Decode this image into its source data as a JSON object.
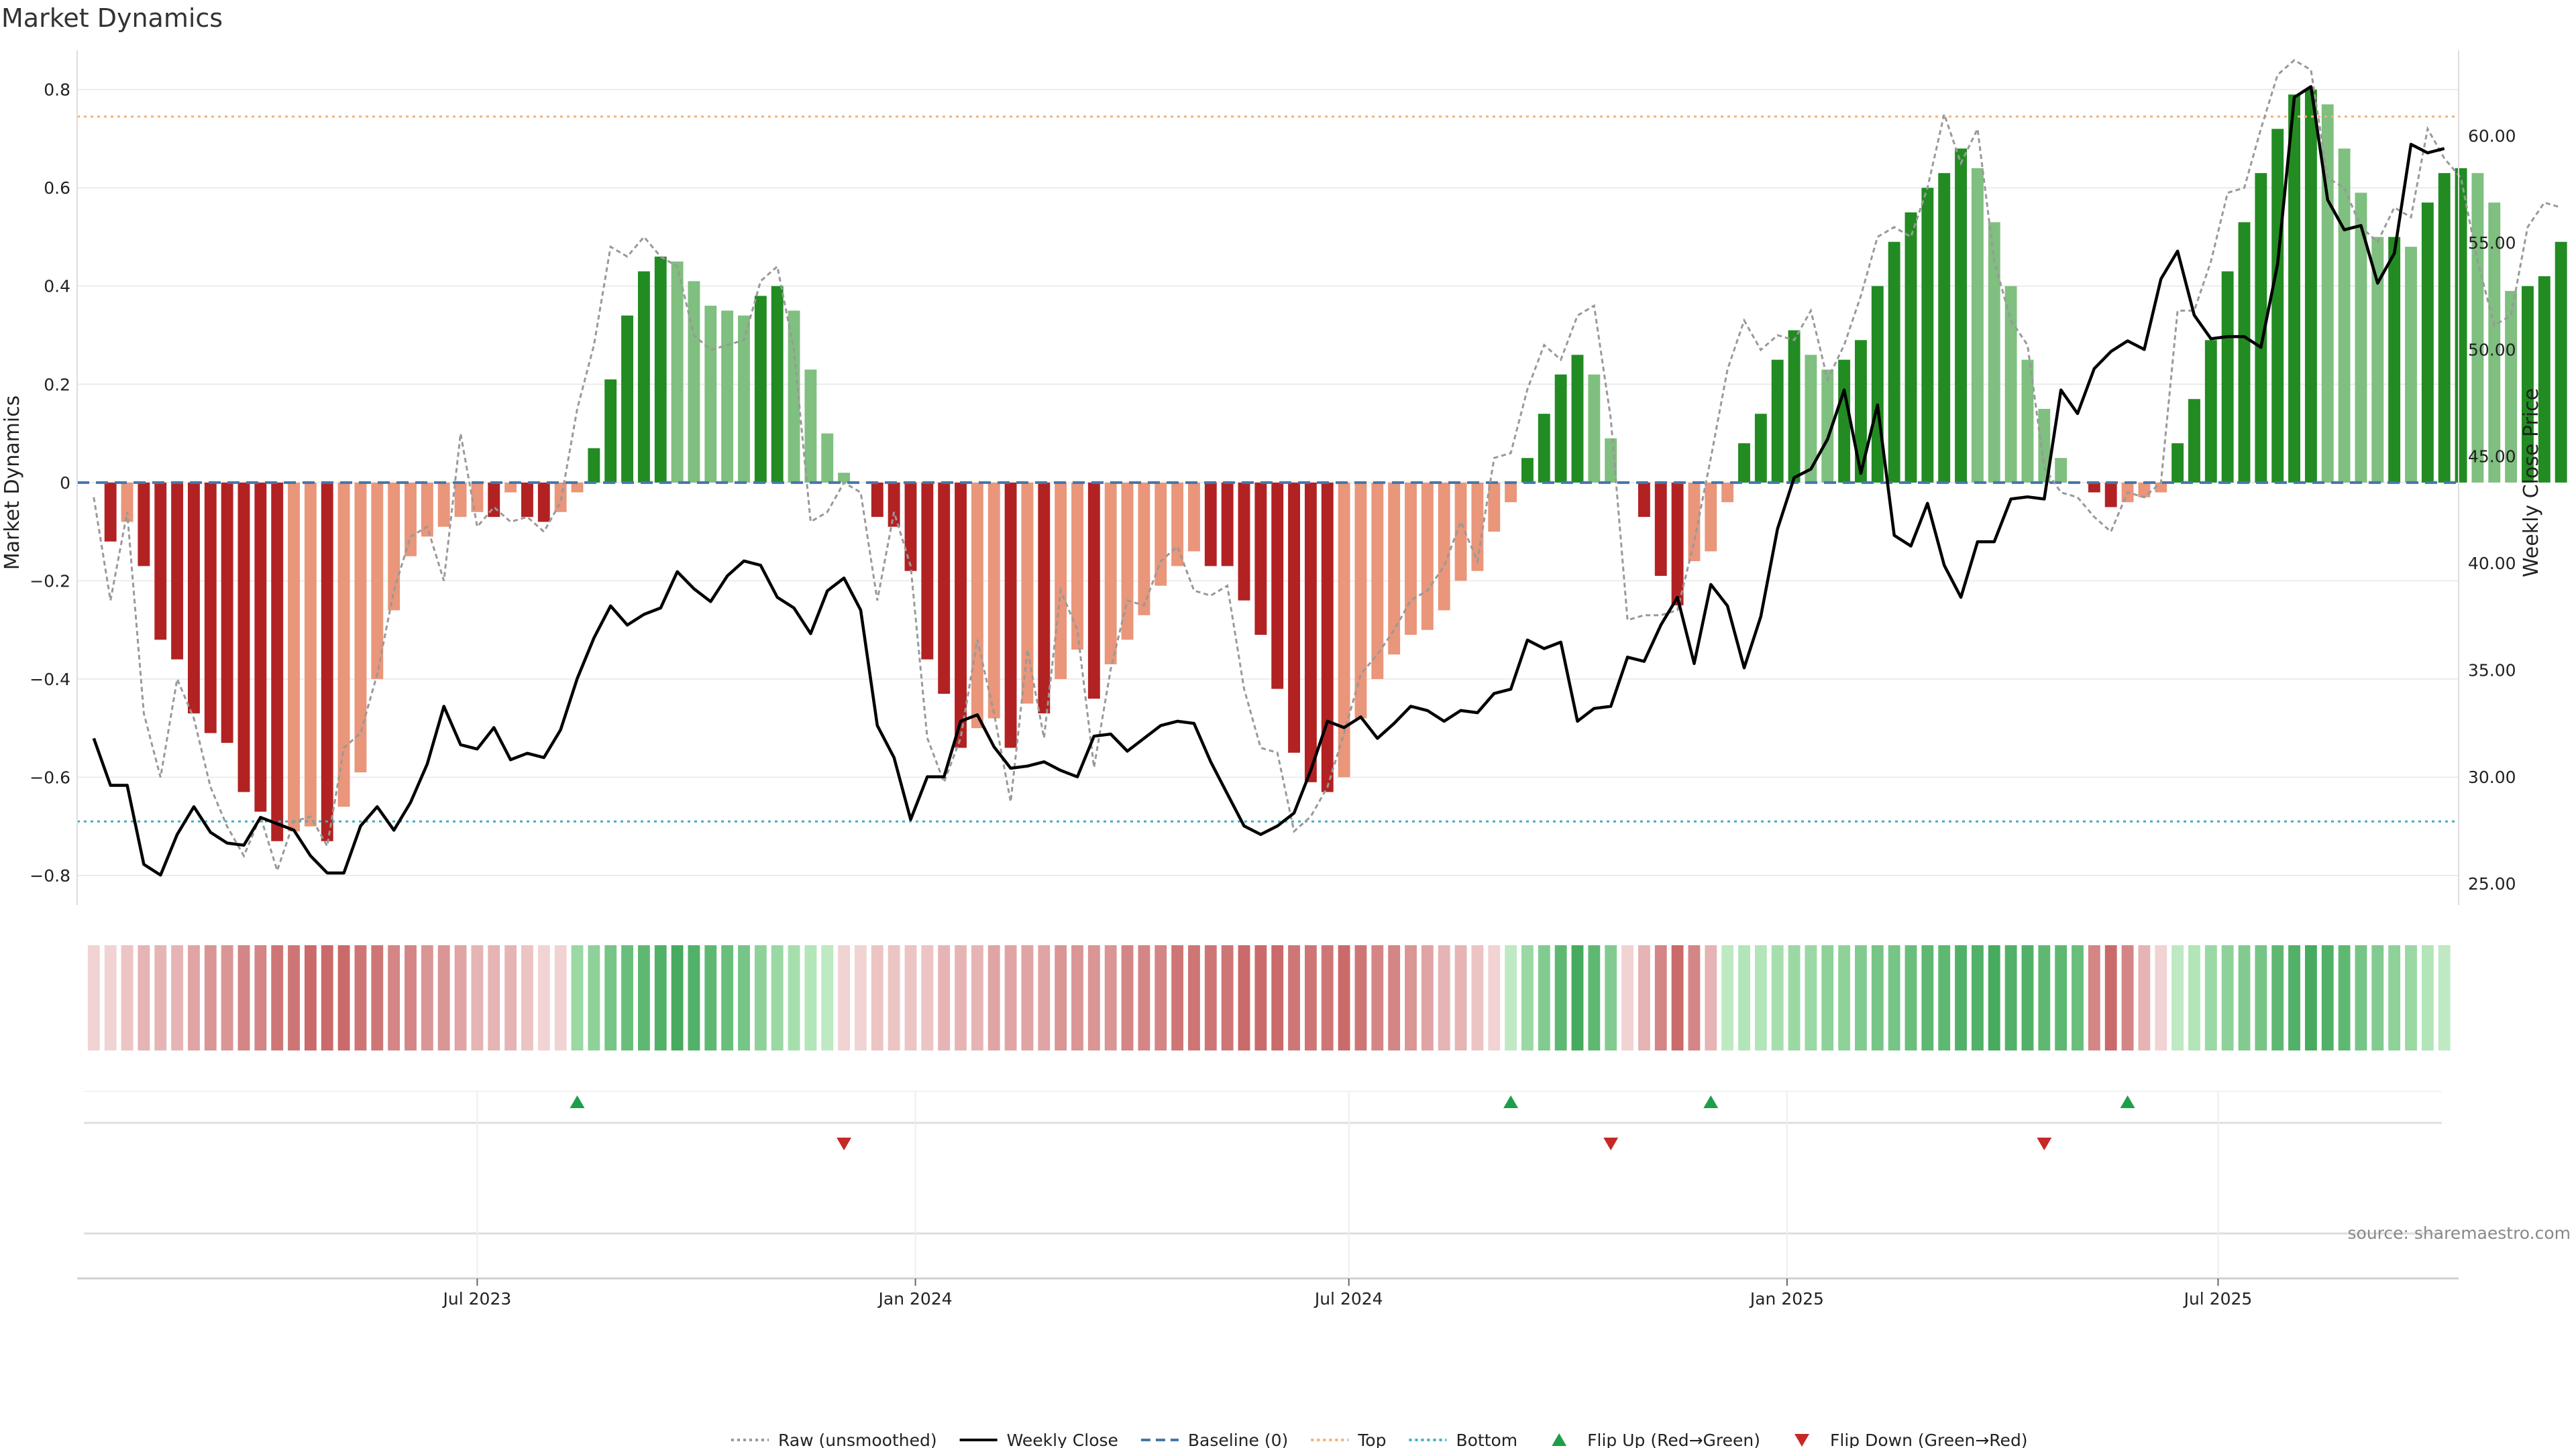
{
  "chart_data": {
    "type": "bar",
    "title": "Market Dynamics",
    "ylabel_left": "Market Dynamics",
    "ylabel_right": "Weekly Close Price",
    "ylim_left": [
      -0.86,
      0.88
    ],
    "ylim_right": [
      24.0,
      64.0
    ],
    "yticks_left": [
      "0.8",
      "0.6",
      "0.4",
      "0.2",
      "0",
      "−0.2",
      "−0.4",
      "−0.6",
      "−0.8"
    ],
    "yticks_right": [
      "60.00",
      "55.00",
      "50.00",
      "45.00",
      "40.00",
      "35.00",
      "30.00",
      "25.00"
    ],
    "x_start": "2023-01-14",
    "x_end": "2025-10-10",
    "x_ticks": [
      {
        "label": "Jul 2023",
        "date": "2023-07-01"
      },
      {
        "label": "Jan 2024",
        "date": "2024-01-01"
      },
      {
        "label": "Jul 2024",
        "date": "2024-07-01"
      },
      {
        "label": "Jan 2025",
        "date": "2025-01-01"
      },
      {
        "label": "Jul 2025",
        "date": "2025-07-01"
      }
    ],
    "top_level": 0.745,
    "bottom_level": -0.69,
    "baseline": 0,
    "grid": true,
    "legend_position": "bottom-center",
    "bar_colors": {
      "strong_red": "#b22222",
      "weak_red": "#e9967a",
      "strong_green": "#228b22",
      "weak_green": "#7fbf7f"
    },
    "line_colors": {
      "raw": "#999999",
      "close": "#000000",
      "baseline": "#4477aa",
      "top": "#f0b27a",
      "bottom": "#40b0c0"
    },
    "first_week": "2023-01-21",
    "weeks_count": 142,
    "bar_values": [
      0.0,
      -0.12,
      -0.08,
      -0.17,
      -0.32,
      -0.36,
      -0.47,
      -0.51,
      -0.53,
      -0.63,
      -0.67,
      -0.73,
      -0.71,
      -0.7,
      -0.73,
      -0.66,
      -0.59,
      -0.4,
      -0.26,
      -0.15,
      -0.11,
      -0.09,
      -0.07,
      -0.06,
      -0.07,
      -0.02,
      -0.07,
      -0.08,
      -0.06,
      -0.02,
      0.07,
      0.21,
      0.34,
      0.43,
      0.46,
      0.45,
      0.41,
      0.36,
      0.35,
      0.34,
      0.38,
      0.4,
      0.35,
      0.23,
      0.1,
      0.02,
      0.0,
      -0.07,
      -0.09,
      -0.18,
      -0.36,
      -0.43,
      -0.54,
      -0.5,
      -0.48,
      -0.54,
      -0.45,
      -0.47,
      -0.4,
      -0.34,
      -0.44,
      -0.37,
      -0.32,
      -0.27,
      -0.21,
      -0.17,
      -0.14,
      -0.17,
      -0.17,
      -0.24,
      -0.31,
      -0.42,
      -0.55,
      -0.61,
      -0.63,
      -0.6,
      -0.48,
      -0.4,
      -0.35,
      -0.31,
      -0.3,
      -0.26,
      -0.2,
      -0.18,
      -0.1,
      -0.04,
      0.05,
      0.14,
      0.22,
      0.26,
      0.22,
      0.09,
      0.0,
      -0.07,
      -0.19,
      -0.25,
      -0.16,
      -0.14,
      -0.04,
      0.08,
      0.14,
      0.25,
      0.31,
      0.26,
      0.23,
      0.25,
      0.29,
      0.4,
      0.49,
      0.55,
      0.6,
      0.63,
      0.68,
      0.64,
      0.53,
      0.4,
      0.25,
      0.15,
      0.05,
      0.0,
      -0.02,
      -0.05,
      -0.04,
      -0.03,
      -0.02,
      0.08,
      0.17,
      0.29,
      0.43,
      0.53,
      0.63,
      0.72,
      0.79,
      0.8,
      0.77,
      0.68,
      0.59,
      0.5,
      0.5,
      0.48,
      0.57,
      0.63,
      0.64,
      0.63,
      0.57,
      0.39,
      0.4,
      0.42,
      0.49
    ],
    "raw_values": [
      -0.03,
      -0.24,
      -0.06,
      -0.47,
      -0.6,
      -0.4,
      -0.48,
      -0.62,
      -0.7,
      -0.76,
      -0.68,
      -0.79,
      -0.69,
      -0.68,
      -0.74,
      -0.54,
      -0.51,
      -0.39,
      -0.22,
      -0.11,
      -0.09,
      -0.2,
      0.1,
      -0.09,
      -0.05,
      -0.08,
      -0.07,
      -0.1,
      -0.04,
      0.15,
      0.28,
      0.48,
      0.46,
      0.5,
      0.46,
      0.44,
      0.3,
      0.27,
      0.28,
      0.29,
      0.41,
      0.44,
      0.27,
      -0.08,
      -0.06,
      0.0,
      -0.02,
      -0.24,
      -0.06,
      -0.17,
      -0.52,
      -0.61,
      -0.52,
      -0.32,
      -0.47,
      -0.65,
      -0.34,
      -0.52,
      -0.22,
      -0.3,
      -0.58,
      -0.38,
      -0.24,
      -0.25,
      -0.16,
      -0.13,
      -0.22,
      -0.23,
      -0.21,
      -0.42,
      -0.54,
      -0.55,
      -0.71,
      -0.68,
      -0.62,
      -0.51,
      -0.39,
      -0.35,
      -0.3,
      -0.24,
      -0.22,
      -0.17,
      -0.08,
      -0.16,
      0.05,
      0.06,
      0.19,
      0.28,
      0.25,
      0.34,
      0.36,
      0.13,
      -0.28,
      -0.27,
      -0.27,
      -0.26,
      -0.12,
      0.05,
      0.23,
      0.33,
      0.27,
      0.3,
      0.29,
      0.35,
      0.21,
      0.28,
      0.38,
      0.5,
      0.52,
      0.5,
      0.6,
      0.75,
      0.65,
      0.72,
      0.45,
      0.33,
      0.28,
      0.03,
      -0.02,
      -0.03,
      -0.07,
      -0.1,
      -0.02,
      -0.03,
      0.0,
      0.35,
      0.35,
      0.45,
      0.59,
      0.6,
      0.72,
      0.83,
      0.86,
      0.84,
      0.62,
      0.6,
      0.52,
      0.49,
      0.56,
      0.54,
      0.72,
      0.66,
      0.62,
      0.45,
      0.32,
      0.34,
      0.52,
      0.57,
      0.56
    ],
    "close_values": [
      31.8,
      29.6,
      29.6,
      25.9,
      25.4,
      27.3,
      28.6,
      27.4,
      26.9,
      26.8,
      28.1,
      27.8,
      27.5,
      26.3,
      25.5,
      25.5,
      27.7,
      28.6,
      27.5,
      28.8,
      30.6,
      33.3,
      31.5,
      31.3,
      32.3,
      30.8,
      31.1,
      30.9,
      32.2,
      34.6,
      36.5,
      38.0,
      37.1,
      37.6,
      37.9,
      39.6,
      38.8,
      38.2,
      39.4,
      40.1,
      39.9,
      38.4,
      37.9,
      36.7,
      38.7,
      39.3,
      37.8,
      32.4,
      30.9,
      28.0,
      30.0,
      30.0,
      32.6,
      32.9,
      31.4,
      30.4,
      30.5,
      30.7,
      30.3,
      30.0,
      31.9,
      32.0,
      31.2,
      31.8,
      32.4,
      32.6,
      32.5,
      30.7,
      29.2,
      27.7,
      27.3,
      27.7,
      28.3,
      30.3,
      32.6,
      32.3,
      32.8,
      31.8,
      32.5,
      33.3,
      33.1,
      32.6,
      33.1,
      33.0,
      33.9,
      34.1,
      36.4,
      36.0,
      36.3,
      32.6,
      33.2,
      33.3,
      35.6,
      35.4,
      37.1,
      38.4,
      35.3,
      39.0,
      38.0,
      35.1,
      37.5,
      41.6,
      44.0,
      44.4,
      45.8,
      48.1,
      44.2,
      47.4,
      41.3,
      40.8,
      42.8,
      39.9,
      38.4,
      41.0,
      41.0,
      43.0,
      43.1,
      43.0,
      48.1,
      47.0,
      49.1,
      49.9,
      50.4,
      50.0,
      53.3,
      54.6,
      51.6,
      50.5,
      50.6,
      50.6,
      50.1,
      54.0,
      61.8,
      62.3,
      57.0,
      55.6,
      55.8,
      53.1,
      54.5,
      59.6,
      59.2,
      59.4
    ],
    "strip_colors": [
      "#f1d3d3",
      "#ecc4c4",
      "#e6b4b4",
      "#e0a4a4",
      "#da9595",
      "#d48585",
      "#ce7676",
      "#ca6a6a",
      "#ca6a6a",
      "#ca6a6a",
      "#ce7676",
      "#d48585",
      "#da9595",
      "#e0a4a4",
      "#e6b4b4",
      "#ecc4c4",
      "#f1d3d3",
      "#2e9e4a",
      "#3aa454",
      "#46ab5e",
      "#52b168",
      "#5eb872",
      "#6abe7c",
      "#76c586",
      "#82cb90",
      "#8ed29a",
      "#9ad8a4",
      "#a6dfae",
      "#b2e5b8",
      "#bee9c2"
    ],
    "strip_runs": [
      {
        "start": 0,
        "end": 28,
        "color": "red",
        "peak": 14
      },
      {
        "start": 29,
        "end": 44,
        "color": "green",
        "peak": 35
      },
      {
        "start": 45,
        "end": 74,
        "color": "red",
        "peak": 70
      },
      {
        "start": 75,
        "end": 84,
        "color": "red",
        "peak": 75
      },
      {
        "start": 85,
        "end": 91,
        "color": "green",
        "peak": 89
      },
      {
        "start": 92,
        "end": 97,
        "color": "red",
        "peak": 95
      },
      {
        "start": 98,
        "end": 119,
        "color": "green",
        "peak": 114
      },
      {
        "start": 120,
        "end": 124,
        "color": "red",
        "peak": 121
      },
      {
        "start": 125,
        "end": 141,
        "color": "green",
        "peak": 133
      }
    ],
    "flips_up_idx": [
      29,
      85,
      97,
      122
    ],
    "flips_down_idx": [
      45,
      91,
      117
    ],
    "legend": [
      {
        "label": "Raw (unsmoothed)",
        "marker": "dotted-line",
        "color": "#999999"
      },
      {
        "label": "Weekly Close",
        "marker": "solid-line",
        "color": "#000000"
      },
      {
        "label": "Baseline (0)",
        "marker": "dashed-line",
        "color": "#4477aa"
      },
      {
        "label": "Top",
        "marker": "dotted-line",
        "color": "#f0b27a"
      },
      {
        "label": "Bottom",
        "marker": "dotted-line",
        "color": "#40b0c0"
      },
      {
        "label": "Flip Up (Red→Green)",
        "marker": "triangle-up",
        "color": "#1e9e4a"
      },
      {
        "label": "Flip Down (Green→Red)",
        "marker": "triangle-down",
        "color": "#c62828"
      }
    ],
    "source": "source: sharemaestro.com"
  }
}
